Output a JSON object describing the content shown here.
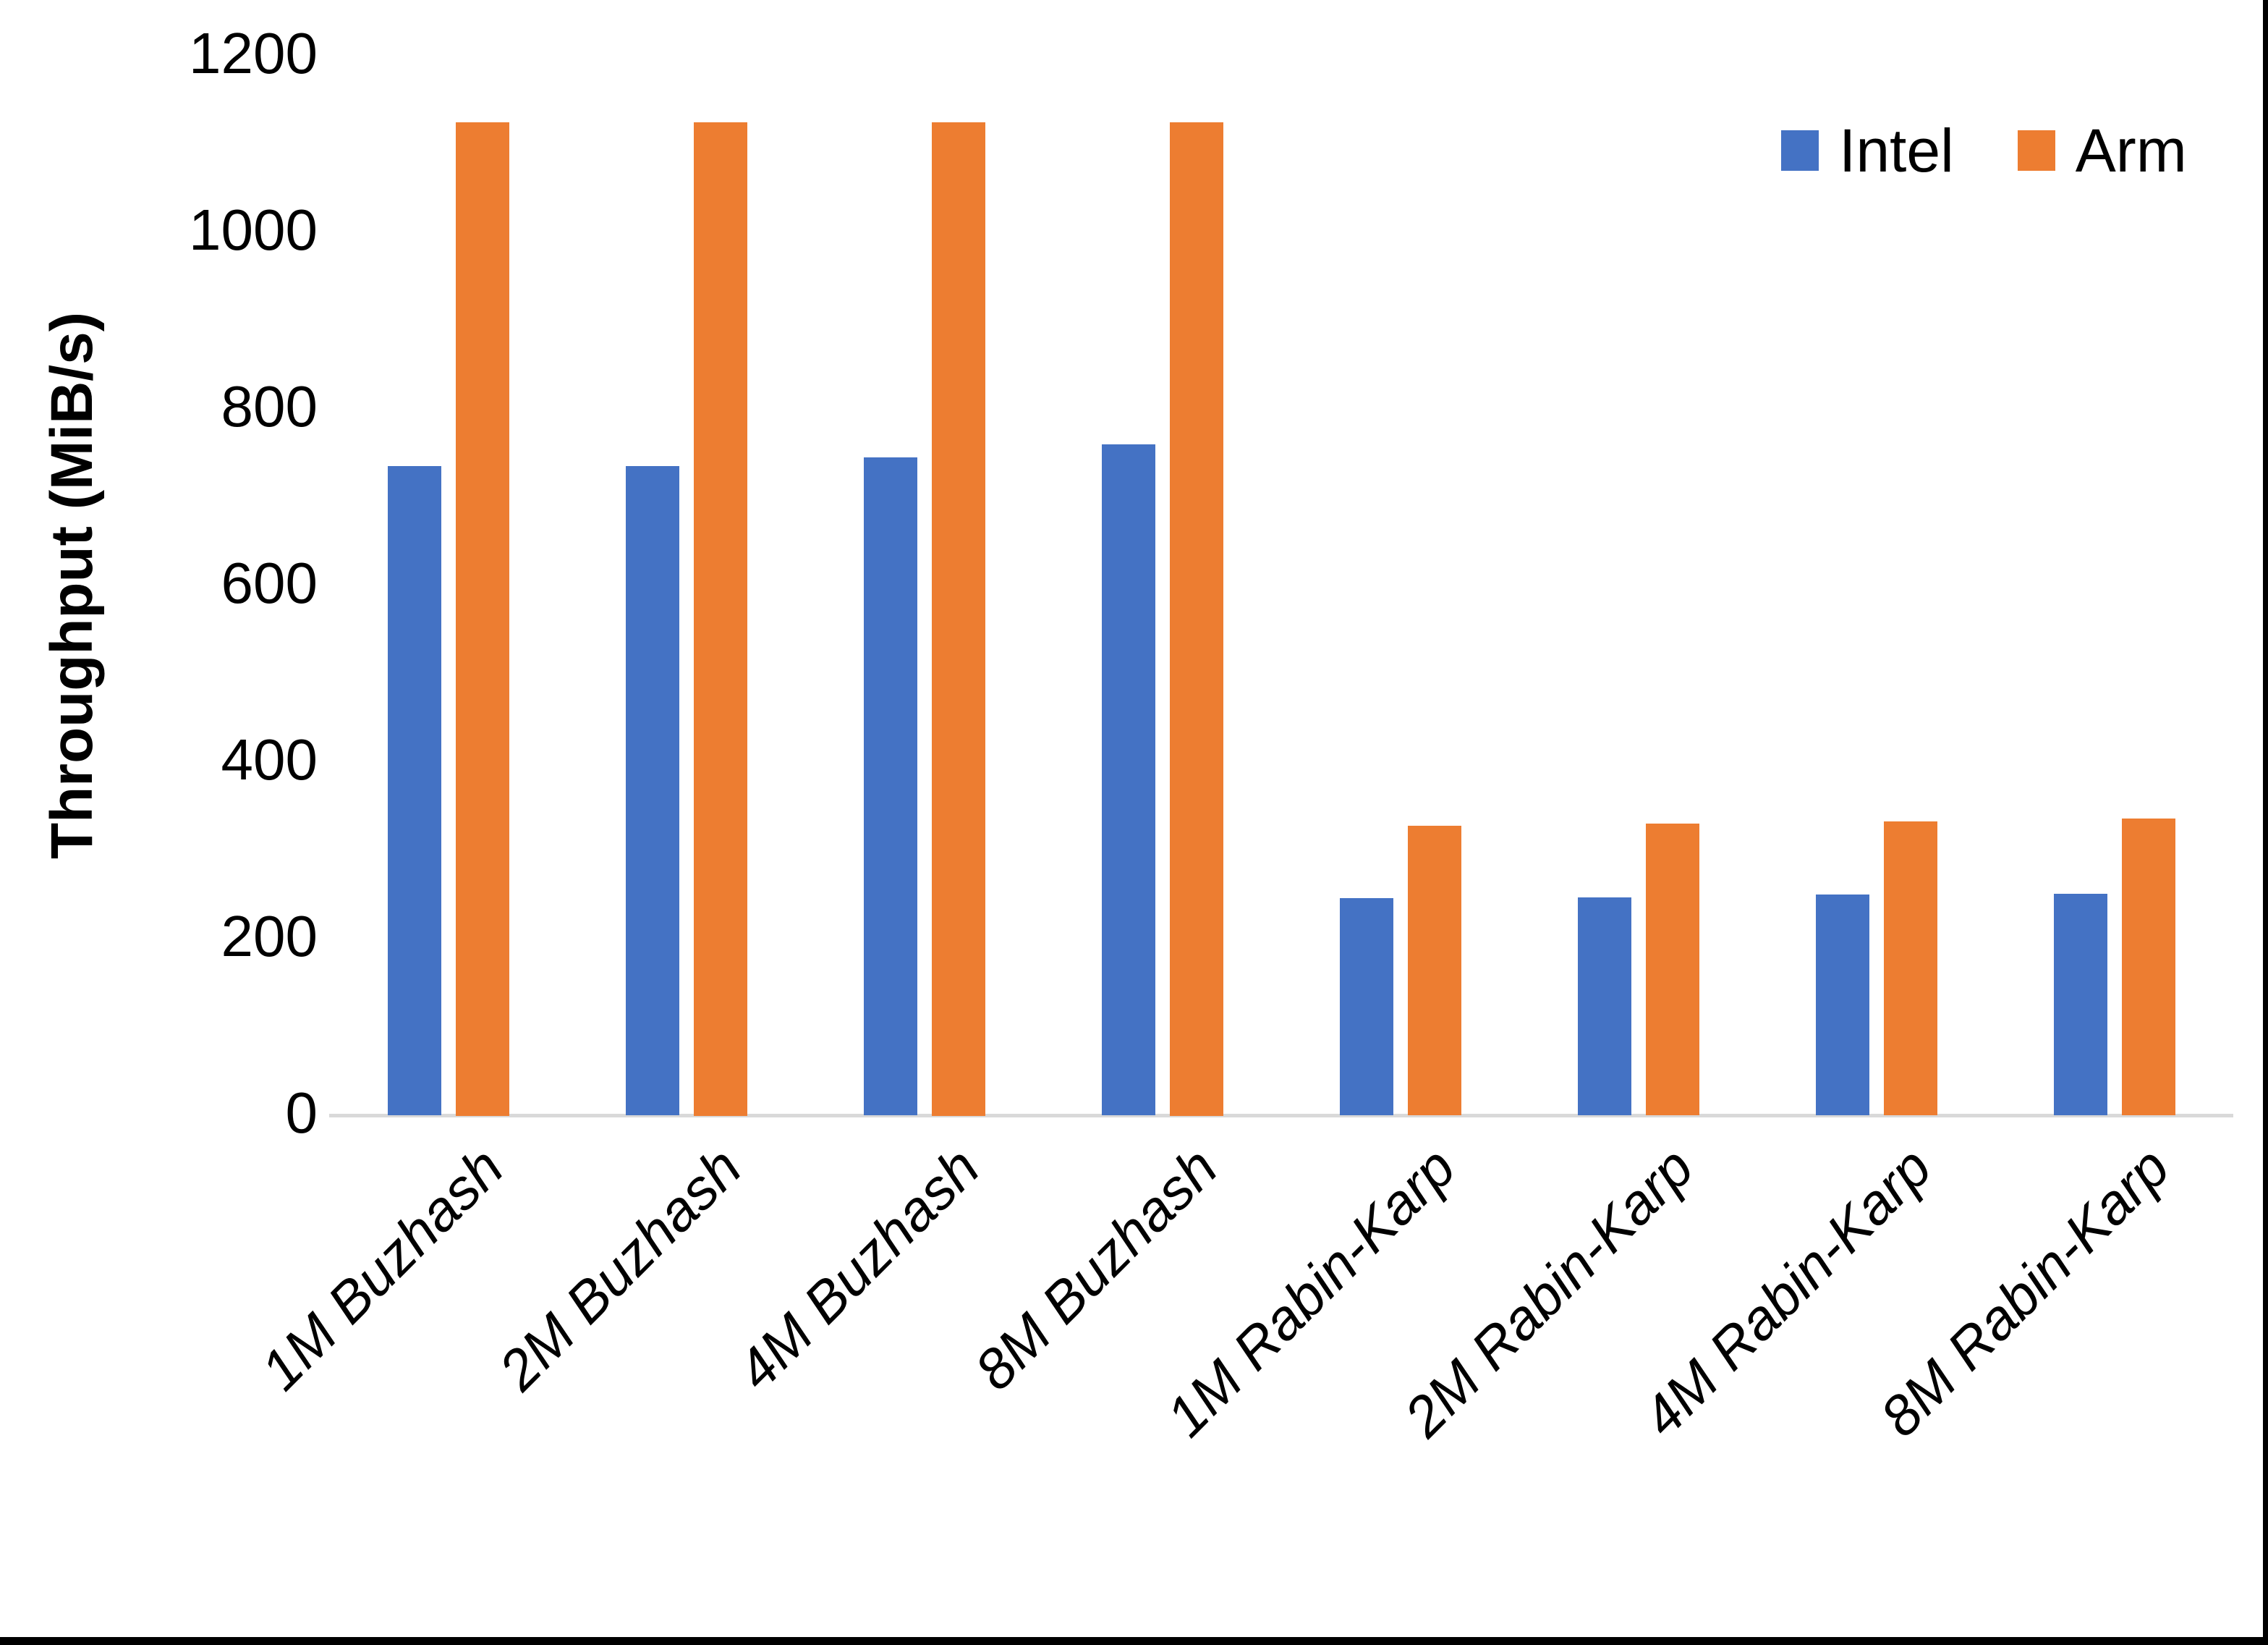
{
  "chart_data": {
    "type": "bar",
    "title": "",
    "xlabel": "",
    "ylabel": "Throughput (MiB/s)",
    "ylim": [
      0,
      1200
    ],
    "yticks": [
      0,
      200,
      400,
      600,
      800,
      1000,
      1200
    ],
    "grid": false,
    "legend_position": "top-right",
    "categories": [
      "1M Buzhash",
      "2M Buzhash",
      "4M Buzhash",
      "8M Buzhash",
      "1M Rabin-Karp",
      "2M Rabin-Karp",
      "4M Rabin-Karp",
      "8M Rabin-Karp"
    ],
    "series": [
      {
        "name": "Intel",
        "color": "#4472C4",
        "values": [
          735,
          735,
          745,
          760,
          246,
          247,
          250,
          251
        ]
      },
      {
        "name": "Arm",
        "color": "#ED7D31",
        "values": [
          1125,
          1125,
          1125,
          1125,
          328,
          330,
          333,
          336
        ]
      }
    ],
    "axis_line_color": "#D9D9D9"
  }
}
